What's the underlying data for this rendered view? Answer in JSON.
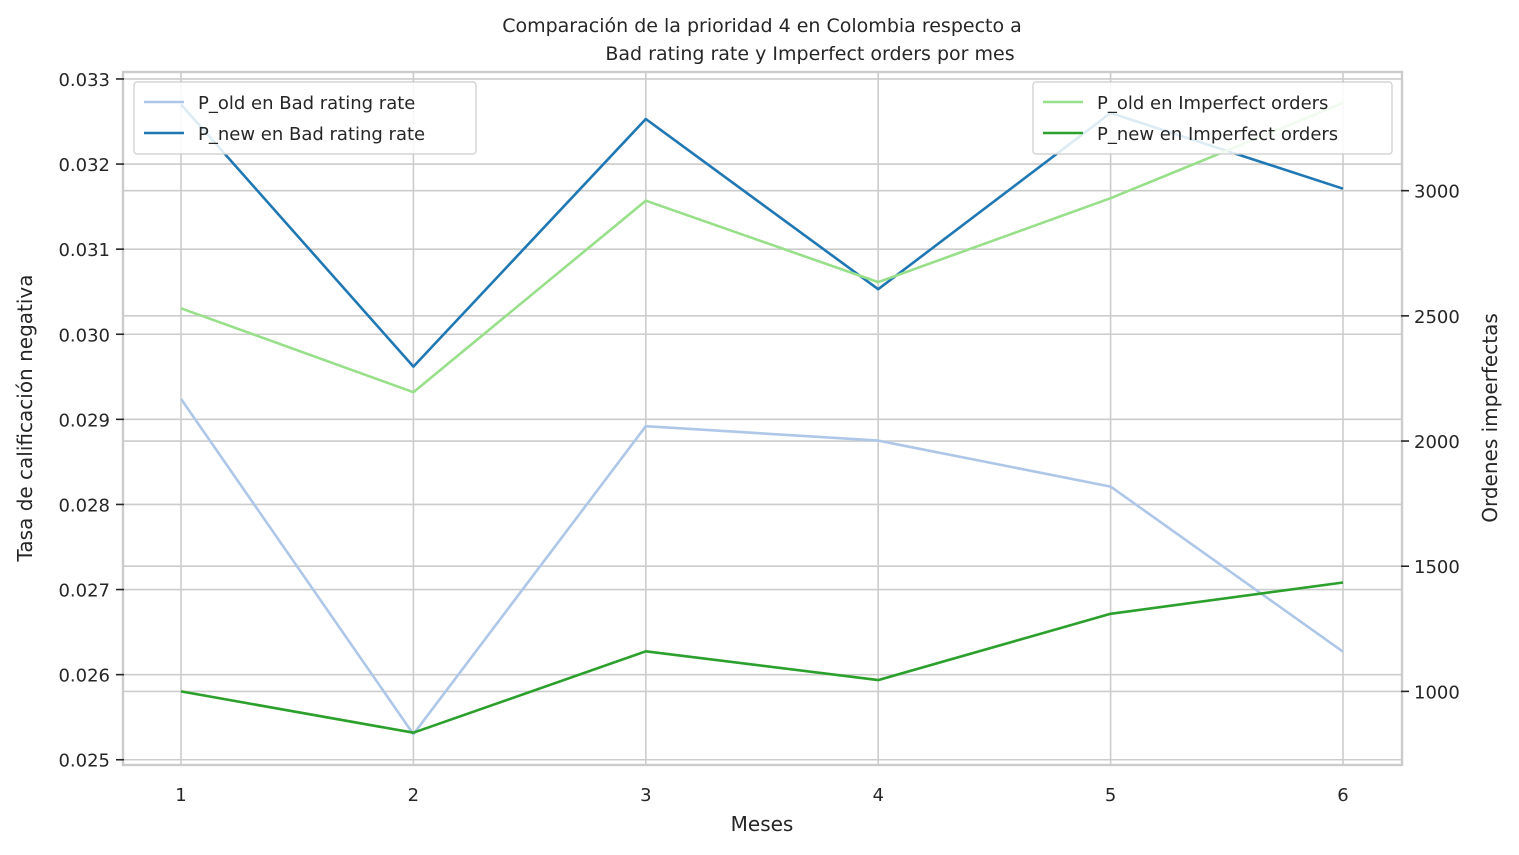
{
  "chart_data": {
    "type": "line",
    "title_line1": "Comparación de la prioridad 4 en Colombia respecto a",
    "title_line2": "Bad rating rate y Imperfect orders por mes",
    "xlabel": "Meses",
    "ylabel_left": "Tasa de calificación negativa",
    "ylabel_right": "Ordenes imperfectas",
    "x": [
      1,
      2,
      3,
      4,
      5,
      6
    ],
    "x_tick_labels": [
      "1",
      "2",
      "3",
      "4",
      "5",
      "6"
    ],
    "left_axis": {
      "range": [
        0.02495,
        0.03307
      ],
      "ticks": [
        0.025,
        0.026,
        0.027,
        0.028,
        0.029,
        0.03,
        0.031,
        0.032,
        0.033
      ],
      "tick_labels": [
        "0.025",
        "0.026",
        "0.027",
        "0.028",
        "0.029",
        "0.030",
        "0.031",
        "0.032",
        "0.033"
      ],
      "series": [
        {
          "name": "P_old en Bad rating rate",
          "color": "#aec7e8",
          "values": [
            0.02924,
            0.0253,
            0.02892,
            0.02875,
            0.02821,
            0.02627
          ]
        },
        {
          "name": "P_new en Bad rating rate",
          "color": "#1f77b4",
          "values": [
            0.0327,
            0.02962,
            0.03253,
            0.03053,
            0.0326,
            0.03171
          ]
        }
      ],
      "legend_position": "top-left"
    },
    "right_axis": {
      "range": [
        710,
        3470
      ],
      "ticks": [
        1000,
        1500,
        2000,
        2500,
        3000
      ],
      "tick_labels": [
        "1000",
        "1500",
        "2000",
        "2500",
        "3000"
      ],
      "series": [
        {
          "name": "P_old en Imperfect orders",
          "color": "#98df8a",
          "values": [
            2530,
            2195,
            2960,
            2635,
            2970,
            3350
          ]
        },
        {
          "name": "P_new en Imperfect orders",
          "color": "#2ca02c",
          "values": [
            1000,
            835,
            1160,
            1045,
            1310,
            1435
          ]
        }
      ],
      "legend_position": "top-right"
    },
    "grid": true
  }
}
